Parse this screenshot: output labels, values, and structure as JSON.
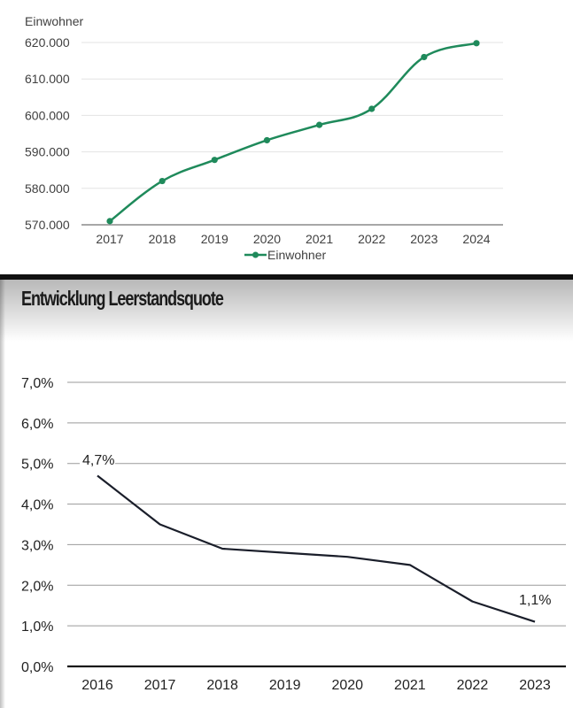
{
  "colors": {
    "population_line": "#1f8a5b",
    "vacancy_line": "#1a1e2a"
  },
  "top_chart": {
    "ylabel": "Einwohner",
    "legend_label": "Einwohner"
  },
  "bottom_chart": {
    "title": "Entwicklung Leerstandsquote",
    "first_label": "4,7%",
    "last_label": "1,1%"
  },
  "chart_data": [
    {
      "type": "line",
      "ylabel": "Einwohner",
      "x": [
        "2017",
        "2018",
        "2019",
        "2020",
        "2021",
        "2022",
        "2023",
        "2024"
      ],
      "y_ticks": [
        "570.000",
        "580.000",
        "590.000",
        "600.000",
        "610.000",
        "620.000"
      ],
      "ylim": [
        570000,
        620000
      ],
      "series": [
        {
          "name": "Einwohner",
          "values": [
            571000,
            582000,
            587800,
            593200,
            597400,
            601800,
            616000,
            619800
          ]
        }
      ],
      "legend": "bottom",
      "grid": true
    },
    {
      "type": "line",
      "title": "Entwicklung Leerstandsquote",
      "x": [
        "2016",
        "2017",
        "2018",
        "2019",
        "2020",
        "2021",
        "2022",
        "2023"
      ],
      "y_ticks": [
        "0,0%",
        "1,0%",
        "2,0%",
        "3,0%",
        "4,0%",
        "5,0%",
        "6,0%",
        "7,0%"
      ],
      "ylim": [
        0,
        7
      ],
      "series": [
        {
          "values": [
            4.7,
            3.5,
            2.9,
            2.8,
            2.7,
            2.5,
            1.6,
            1.1
          ]
        }
      ],
      "data_labels": [
        "4,7%",
        "1,1%"
      ],
      "grid": true
    }
  ]
}
